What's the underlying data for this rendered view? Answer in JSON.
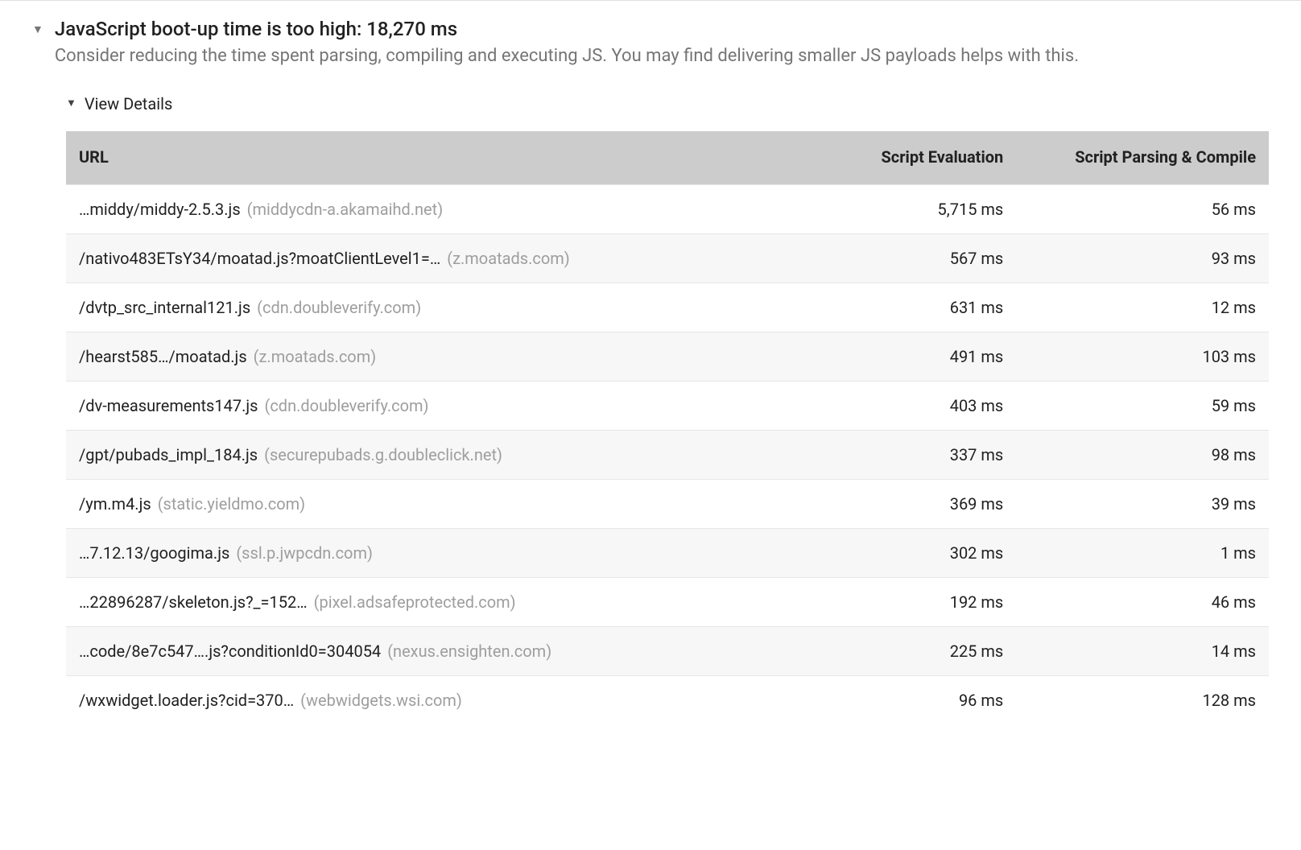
{
  "colors": {
    "background": "#ffffff",
    "text_primary": "#212121",
    "text_secondary": "#757575",
    "text_muted": "#9e9e9e",
    "table_header_bg": "#cccccc",
    "row_alt_bg": "#f7f7f7",
    "border": "#e0e0e0"
  },
  "typography": {
    "title_fontsize": 24,
    "desc_fontsize": 22,
    "table_fontsize": 20,
    "font_family": "-apple-system, Roboto, Arial"
  },
  "audit": {
    "title": "JavaScript boot-up time is too high: 18,270 ms",
    "description": "Consider reducing the time spent parsing, compiling and executing JS. You may find delivering smaller JS payloads helps with this.",
    "details_label": "View Details",
    "triangle_glyph": "▼"
  },
  "table": {
    "columns": {
      "url": "URL",
      "eval": "Script Evaluation",
      "parse": "Script Parsing & Compile"
    },
    "rows": [
      {
        "path": "…middy/middy-2.5.3.js",
        "domain": "(middycdn-a.akamaihd.net)",
        "eval": "5,715 ms",
        "parse": "56 ms"
      },
      {
        "path": "/nativo483ETsY34/moatad.js?moatClientLevel1=…",
        "domain": "(z.moatads.com)",
        "eval": "567 ms",
        "parse": "93 ms"
      },
      {
        "path": "/dvtp_src_internal121.js",
        "domain": "(cdn.doubleverify.com)",
        "eval": "631 ms",
        "parse": "12 ms"
      },
      {
        "path": "/hearst585…/moatad.js",
        "domain": "(z.moatads.com)",
        "eval": "491 ms",
        "parse": "103 ms"
      },
      {
        "path": "/dv-measurements147.js",
        "domain": "(cdn.doubleverify.com)",
        "eval": "403 ms",
        "parse": "59 ms"
      },
      {
        "path": "/gpt/pubads_impl_184.js",
        "domain": "(securepubads.g.doubleclick.net)",
        "eval": "337 ms",
        "parse": "98 ms"
      },
      {
        "path": "/ym.m4.js",
        "domain": "(static.yieldmo.com)",
        "eval": "369 ms",
        "parse": "39 ms"
      },
      {
        "path": "…7.12.13/googima.js",
        "domain": "(ssl.p.jwpcdn.com)",
        "eval": "302 ms",
        "parse": "1 ms"
      },
      {
        "path": "…22896287/skeleton.js?_=152…",
        "domain": "(pixel.adsafeprotected.com)",
        "eval": "192 ms",
        "parse": "46 ms"
      },
      {
        "path": "…code/8e7c547….js?conditionId0=304054",
        "domain": "(nexus.ensighten.com)",
        "eval": "225 ms",
        "parse": "14 ms"
      },
      {
        "path": "/wxwidget.loader.js?cid=370…",
        "domain": "(webwidgets.wsi.com)",
        "eval": "96 ms",
        "parse": "128 ms"
      }
    ]
  }
}
